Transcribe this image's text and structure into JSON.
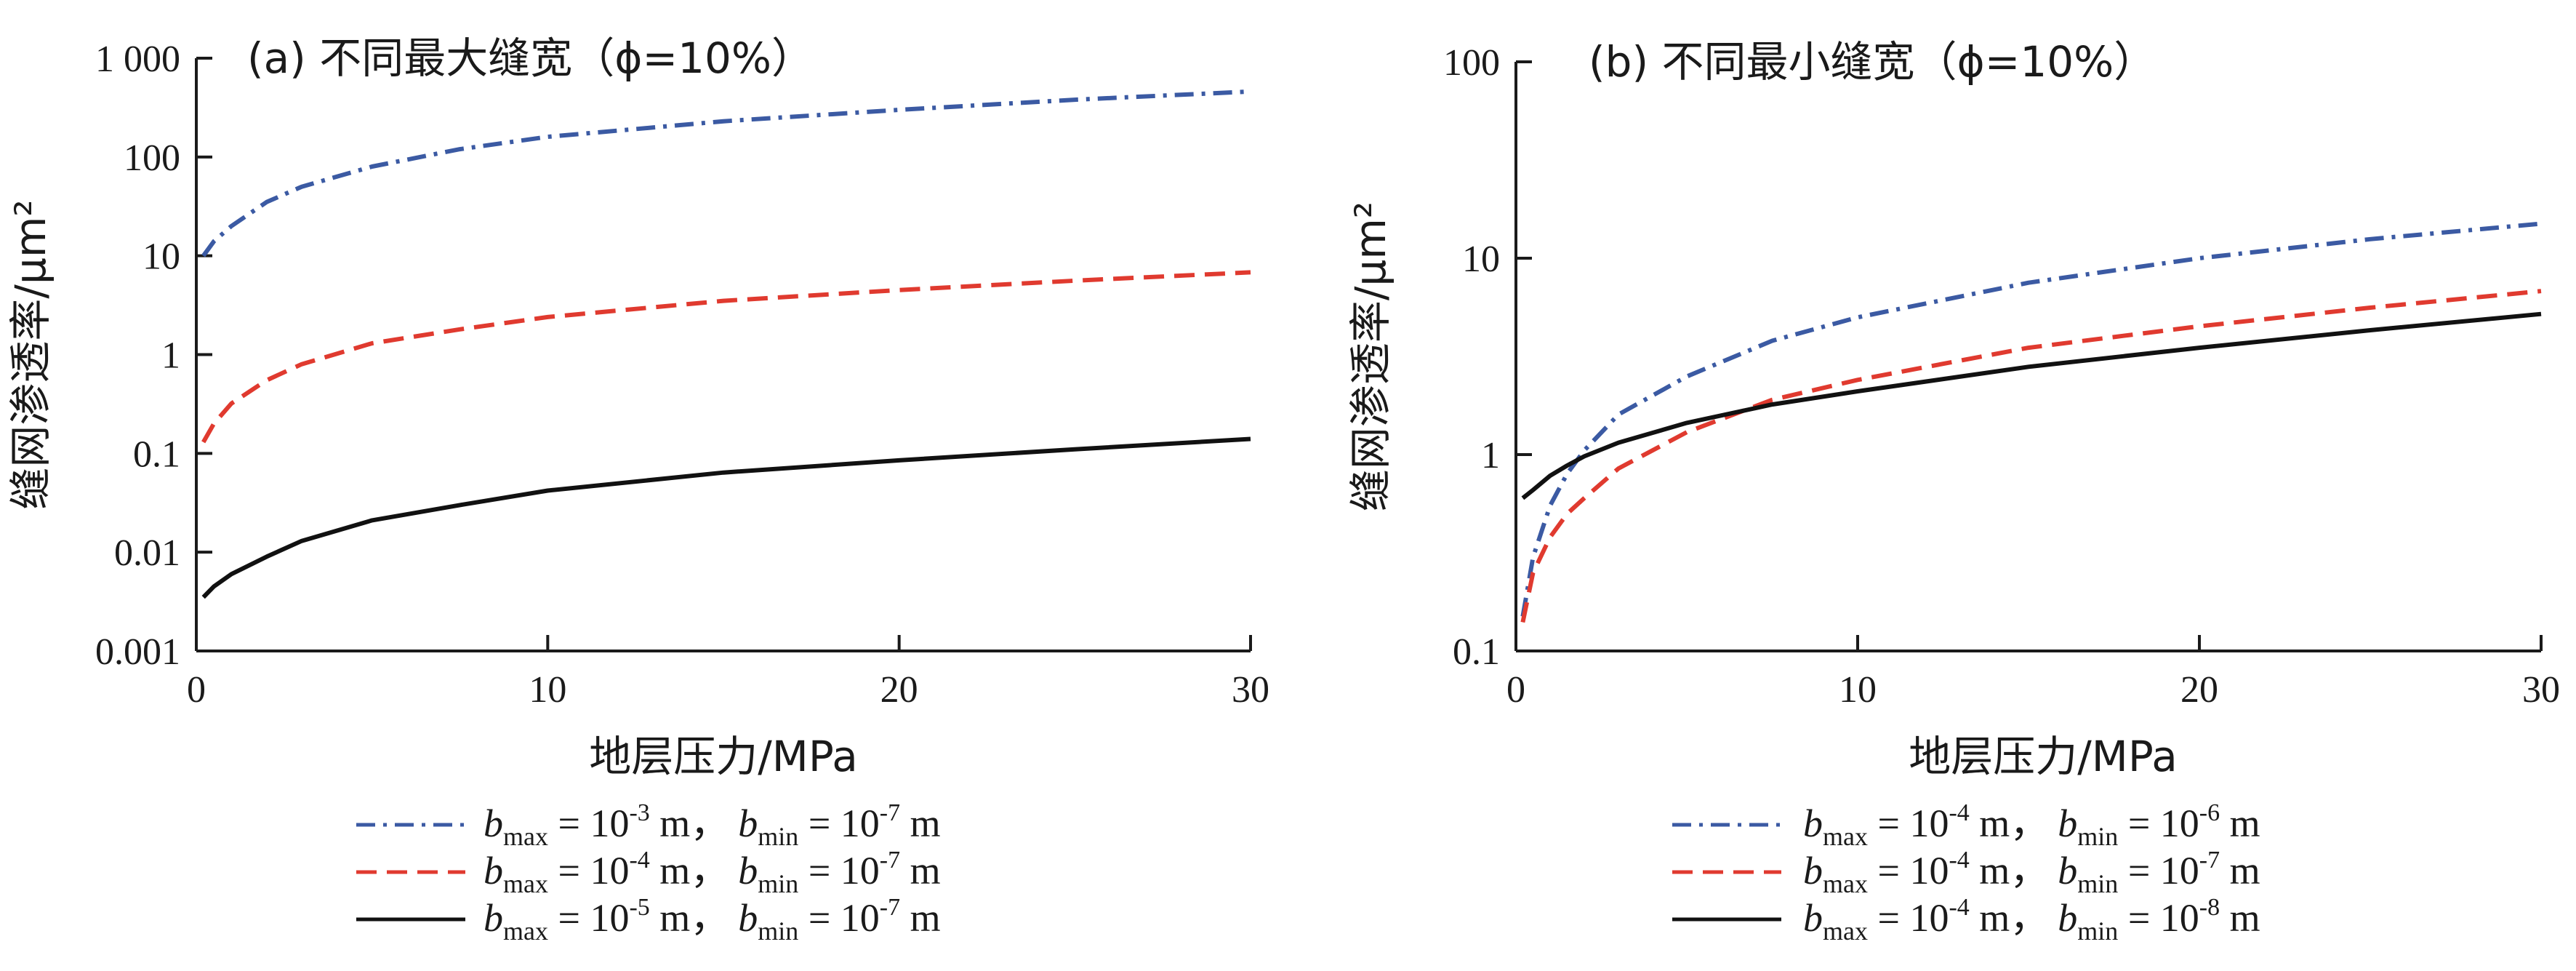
{
  "chart_data": [
    {
      "type": "line",
      "title": "(a) 不同最大缝宽（ϕ=10%）",
      "xlabel": "地层压力/MPa",
      "ylabel": "缝网渗透率/μm²",
      "xlim": [
        0,
        30
      ],
      "ylim": [
        0.001,
        1000
      ],
      "yscale": "log",
      "x_ticks": [
        "0",
        "10",
        "20",
        "30"
      ],
      "y_ticks": [
        "0.001",
        "0.01",
        "0.1",
        "1",
        "10",
        "100",
        "1 000"
      ],
      "legend_position": "bottom",
      "x": [
        0.2,
        0.5,
        1,
        2,
        3,
        5,
        7.5,
        10,
        15,
        20,
        25,
        30
      ],
      "series": [
        {
          "line_style": "dash-dot",
          "color": "#3b5aa3",
          "legend": {
            "b1": "max",
            "e1": "-3",
            "b2": "min",
            "e2": "-7"
          },
          "values": [
            10,
            14,
            20,
            35,
            50,
            80,
            120,
            160,
            230,
            300,
            380,
            460
          ]
        },
        {
          "line_style": "dashed",
          "color": "#e03a2f",
          "legend": {
            "b1": "max",
            "e1": "-4",
            "b2": "min",
            "e2": "-7"
          },
          "values": [
            0.13,
            0.2,
            0.32,
            0.55,
            0.8,
            1.3,
            1.8,
            2.4,
            3.5,
            4.5,
            5.6,
            6.8
          ]
        },
        {
          "line_style": "solid",
          "color": "#111111",
          "legend": {
            "b1": "max",
            "e1": "-5",
            "b2": "min",
            "e2": "-7"
          },
          "values": [
            0.0035,
            0.0045,
            0.006,
            0.009,
            0.013,
            0.021,
            0.03,
            0.042,
            0.064,
            0.085,
            0.11,
            0.14
          ]
        }
      ]
    },
    {
      "type": "line",
      "title": "(b) 不同最小缝宽（ϕ=10%）",
      "xlabel": "地层压力/MPa",
      "ylabel": "缝网渗透率/μm²",
      "xlim": [
        0,
        30
      ],
      "ylim": [
        0.1,
        100
      ],
      "yscale": "log",
      "x_ticks": [
        "0",
        "10",
        "20",
        "30"
      ],
      "y_ticks": [
        "0.1",
        "1",
        "10",
        "100"
      ],
      "legend_position": "bottom",
      "x": [
        0.2,
        0.5,
        1,
        1.5,
        2,
        3,
        5,
        7.5,
        10,
        15,
        20,
        25,
        30
      ],
      "series": [
        {
          "line_style": "dash-dot",
          "color": "#3b5aa3",
          "legend": {
            "b1": "max",
            "e1": "-4",
            "b2": "min",
            "e2": "-6"
          },
          "values": [
            0.15,
            0.3,
            0.55,
            0.8,
            1.05,
            1.6,
            2.5,
            3.8,
            5,
            7.5,
            10,
            12.5,
            15
          ]
        },
        {
          "line_style": "dashed",
          "color": "#e03a2f",
          "legend": {
            "b1": "max",
            "e1": "-4",
            "b2": "min",
            "e2": "-7"
          },
          "values": [
            0.14,
            0.25,
            0.38,
            0.5,
            0.6,
            0.85,
            1.3,
            1.9,
            2.4,
            3.5,
            4.5,
            5.6,
            6.8
          ]
        },
        {
          "line_style": "solid",
          "color": "#111111",
          "legend": {
            "b1": "max",
            "e1": "-4",
            "b2": "min",
            "e2": "-8"
          },
          "values": [
            0.6,
            0.66,
            0.78,
            0.88,
            0.98,
            1.15,
            1.45,
            1.8,
            2.1,
            2.8,
            3.5,
            4.3,
            5.2
          ]
        }
      ]
    }
  ]
}
